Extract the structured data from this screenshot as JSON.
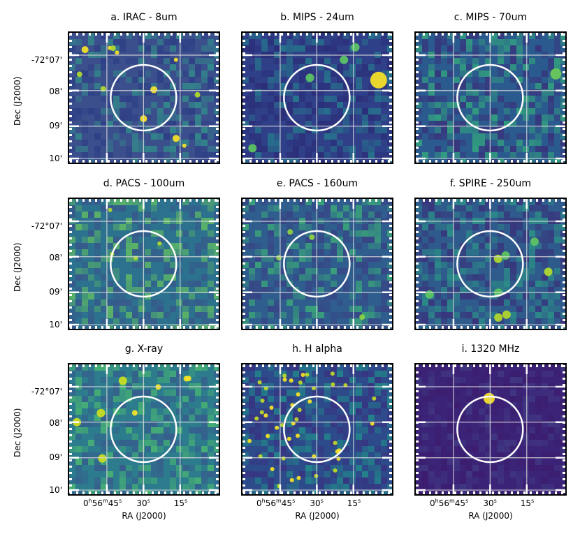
{
  "figure": {
    "panels": [
      {
        "title": "a. IRAC - 8um",
        "base": "#3b4f8c",
        "lo": "#2a3a84",
        "hi": "#2f9e8a",
        "blobs": [
          [
            "#fde725",
            5
          ],
          [
            "#fde725",
            3
          ],
          [
            "#b5de2b",
            4
          ]
        ]
      },
      {
        "title": "b. MIPS - 24um",
        "base": "#2f3f88",
        "lo": "#2b2a75",
        "hi": "#23898e",
        "blobs": [
          [
            "#fde725",
            12
          ],
          [
            "#5ec962",
            6
          ]
        ]
      },
      {
        "title": "c. MIPS - 70um",
        "base": "#2b5b8e",
        "lo": "#3b2b78",
        "hi": "#35b779",
        "blobs": [
          [
            "#6ece58",
            8
          ]
        ]
      },
      {
        "title": "d. PACS - 100um",
        "base": "#2c728e",
        "lo": "#3b528b",
        "hi": "#6ece58",
        "blobs": [
          [
            "#b5de2b",
            3
          ]
        ]
      },
      {
        "title": "e. PACS - 160um",
        "base": "#2e5d8e",
        "lo": "#3b3f84",
        "hi": "#3fbc73",
        "blobs": [
          [
            "#90d743",
            4
          ]
        ]
      },
      {
        "title": "f. SPIRE - 250um",
        "base": "#2f5a8c",
        "lo": "#3b2b78",
        "hi": "#2a9f86",
        "blobs": [
          [
            "#b5de2b",
            6
          ],
          [
            "#5ec962",
            6
          ]
        ]
      },
      {
        "title": "g. X-ray",
        "base": "#2c7c8e",
        "lo": "#39558c",
        "hi": "#52c569",
        "blobs": [
          [
            "#d0e11c",
            6
          ],
          [
            "#fde725",
            4
          ]
        ]
      },
      {
        "title": "h. H alpha",
        "base": "#2d4a8a",
        "lo": "#3b2f80",
        "hi": "#1f988b",
        "blobs": [
          [
            "#fde725",
            3
          ],
          [
            "#c2df23",
            3
          ]
        ]
      },
      {
        "title": "i. 1320 MHz",
        "base": "#3b2478",
        "lo": "#3d1b6c",
        "hi": "#433e85",
        "blobs": [
          [
            "#fde725",
            8
          ]
        ]
      }
    ],
    "y_ticks": [
      "-72°07'",
      "08'",
      "09'",
      "10'"
    ],
    "y_label": "Dec (J2000)",
    "x_ticks": [
      {
        "main": "0",
        "h": "h",
        "m_val": "56",
        "m": "m",
        "s_val": "45",
        "s": "s"
      },
      {
        "main": "30",
        "s": "s"
      },
      {
        "main": "15",
        "s": "s"
      }
    ],
    "x_label": "RA (J2000)"
  }
}
